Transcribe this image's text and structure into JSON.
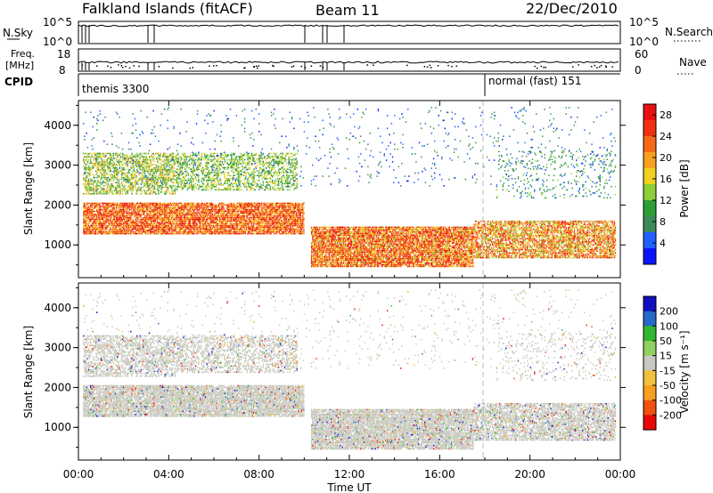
{
  "header": {
    "title": "Falkland Islands (fitACF)",
    "beam": "Beam 11",
    "date": "22/Dec/2010"
  },
  "strips": {
    "nsky_label": "N.Sky",
    "nsky_ticks": [
      "10^5",
      "10^0"
    ],
    "nsearch_label": "N.Search",
    "nsearch_ticks": [
      "10^5",
      "10^0"
    ],
    "freq_label": "Freq.",
    "freq_unit": "[MHz]",
    "freq_ticks": [
      "18",
      "8"
    ],
    "nave_label": "Nave",
    "nave_ticks": [
      "60",
      "0"
    ],
    "cpid_label": "CPID",
    "cpid_mode_1": "themis 3300",
    "cpid_mode_2": "normal (fast) 151"
  },
  "colors": {
    "power_scale": [
      "#0a14ff",
      "#2060ff",
      "#3a8a5a",
      "#2e9e3a",
      "#8ccf3a",
      "#f0d020",
      "#f7a020",
      "#f56818",
      "#f03010",
      "#e81010"
    ],
    "velocity_scale": [
      "#e80808",
      "#f05010",
      "#f7a020",
      "#f0c040",
      "#c8c8c0",
      "#8fd060",
      "#30b830",
      "#2868c8",
      "#1010c0"
    ]
  },
  "chart_data": [
    {
      "type": "heatmap",
      "title": "",
      "xlabel": "",
      "ylabel": "Slant Range [km]",
      "x_ticks": [
        "00:00",
        "04:00",
        "08:00",
        "12:00",
        "16:00",
        "20:00",
        "00:00"
      ],
      "y_ticks": [
        "1000",
        "2000",
        "3000",
        "4000"
      ],
      "xlim_hours": [
        0,
        24
      ],
      "ylim_km": [
        180,
        4620
      ],
      "colorbar_label": "Power [dB]",
      "colorbar_ticks": [
        "4",
        "8",
        "12",
        "16",
        "20",
        "24",
        "28"
      ],
      "colorbar_range": [
        0,
        30
      ],
      "mode_change_hour": 18.0,
      "grid": false
    },
    {
      "type": "heatmap",
      "title": "",
      "xlabel": "Time UT",
      "ylabel": "Slant Range [km]",
      "x_ticks": [
        "00:00",
        "04:00",
        "08:00",
        "12:00",
        "16:00",
        "20:00",
        "00:00"
      ],
      "y_ticks": [
        "1000",
        "2000",
        "3000",
        "4000"
      ],
      "xlim_hours": [
        0,
        24
      ],
      "ylim_km": [
        180,
        4620
      ],
      "colorbar_label": "Velocity [m s⁻¹]",
      "colorbar_ticks": [
        "200",
        "100",
        "50",
        "15",
        "-15",
        "-50",
        "-100",
        "-200"
      ],
      "colorbar_range": [
        -250,
        250
      ],
      "mode_change_hour": 18.0,
      "grid": false
    }
  ]
}
